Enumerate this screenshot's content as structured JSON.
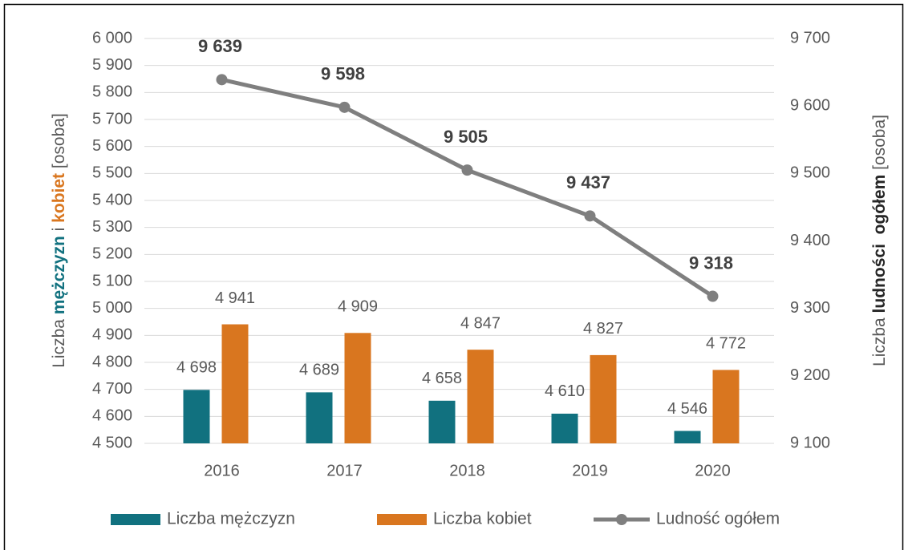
{
  "chart_data": {
    "type": "bar-line",
    "categories": [
      "2016",
      "2017",
      "2018",
      "2019",
      "2020"
    ],
    "y_label": [
      "Liczba",
      "mężczyzn",
      "i",
      "kobiet",
      "[osoba]"
    ],
    "y2_label": [
      "Liczba",
      "ludności  ogółem",
      "[osoba]"
    ],
    "ylim": [
      4500,
      6000
    ],
    "yticks": [
      {
        "value": 4500,
        "label": "4 500"
      },
      {
        "value": 4600,
        "label": "4 600"
      },
      {
        "value": 4700,
        "label": "4 700"
      },
      {
        "value": 4800,
        "label": "4 800"
      },
      {
        "value": 4900,
        "label": "4 900"
      },
      {
        "value": 5000,
        "label": "5 000"
      },
      {
        "value": 5100,
        "label": "5 100"
      },
      {
        "value": 5200,
        "label": "5 200"
      },
      {
        "value": 5300,
        "label": "5 300"
      },
      {
        "value": 5400,
        "label": "5 400"
      },
      {
        "value": 5500,
        "label": "5 500"
      },
      {
        "value": 5600,
        "label": "5 600"
      },
      {
        "value": 5700,
        "label": "5 700"
      },
      {
        "value": 5800,
        "label": "5 800"
      },
      {
        "value": 5900,
        "label": "5 900"
      },
      {
        "value": 6000,
        "label": "6 000"
      }
    ],
    "y2lim": [
      9100,
      9700
    ],
    "y2ticks": [
      {
        "value": 9100,
        "label": "9 100"
      },
      {
        "value": 9200,
        "label": "9 200"
      },
      {
        "value": 9300,
        "label": "9 300"
      },
      {
        "value": 9400,
        "label": "9 400"
      },
      {
        "value": 9500,
        "label": "9 500"
      },
      {
        "value": 9600,
        "label": "9 600"
      },
      {
        "value": 9700,
        "label": "9 700"
      }
    ],
    "grid": true,
    "legend": "bottom",
    "series": [
      {
        "name": "Liczba mężczyzn",
        "color": "#11717f",
        "kind": "bar",
        "values": [
          4698,
          4689,
          4658,
          4610,
          4546
        ],
        "value_labels": [
          "4 698",
          "4 689",
          "4 658",
          "4 610",
          "4 546"
        ]
      },
      {
        "name": "Liczba kobiet",
        "color": "#d9761f",
        "kind": "bar",
        "values": [
          4941,
          4909,
          4847,
          4827,
          4772
        ],
        "value_labels": [
          "4 941",
          "4 909",
          "4 847",
          "4 827",
          "4 772"
        ]
      },
      {
        "name": "Ludność ogółem",
        "color": "#7f7f7f",
        "kind": "line",
        "axis": "y2",
        "values": [
          9639,
          9598,
          9505,
          9437,
          9318
        ],
        "value_labels": [
          "9 639",
          "9 598",
          "9 505",
          "9 437",
          "9 318"
        ]
      }
    ]
  }
}
